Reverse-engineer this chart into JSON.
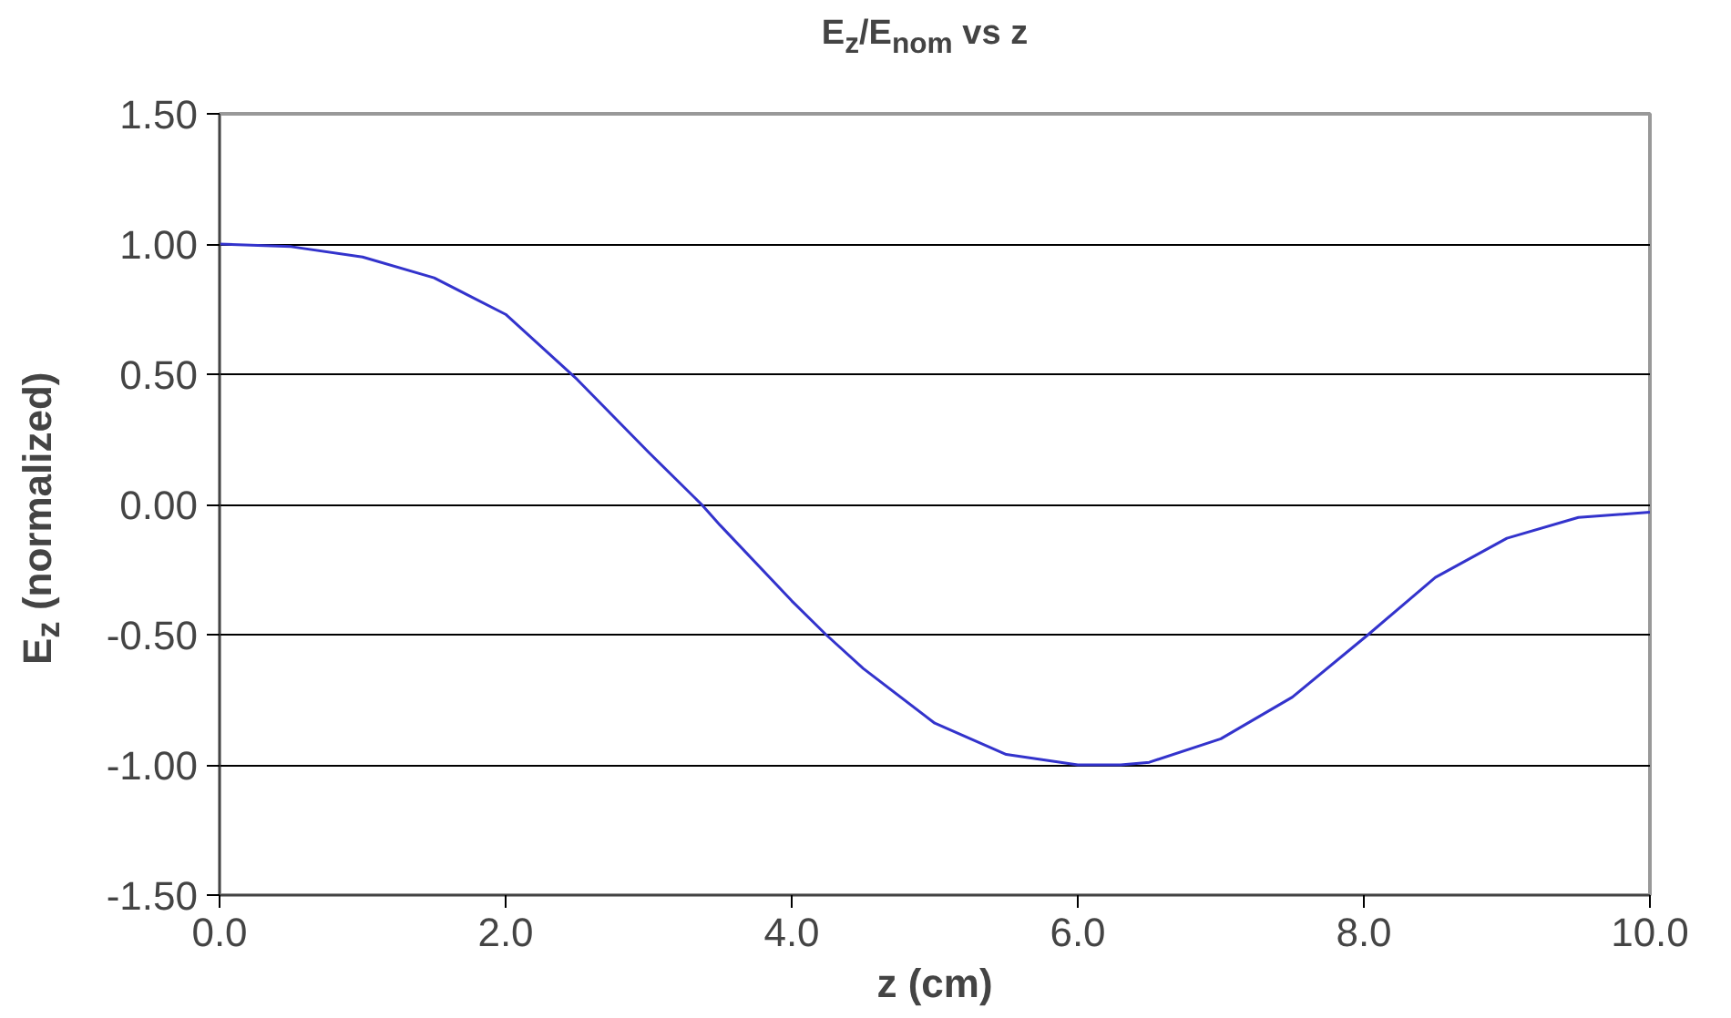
{
  "chart_data": {
    "type": "line",
    "title": "E$_{z}$/E$_{nom}$ vs z",
    "xlabel": "z (cm)",
    "ylabel": "E$_{z}$ (normalized)",
    "x": [
      0,
      0.5,
      1.0,
      1.5,
      2.0,
      2.5,
      3.0,
      3.37,
      3.5,
      4.0,
      4.24,
      4.5,
      5.0,
      5.5,
      6.0,
      6.3,
      6.5,
      7.0,
      7.5,
      8.03,
      8.5,
      9.0,
      9.5,
      10.0
    ],
    "series": [
      {
        "color": "#3333cc",
        "values": [
          1.0,
          0.99,
          0.95,
          0.87,
          0.73,
          0.48,
          0.2,
          0.0,
          -0.08,
          -0.37,
          -0.5,
          -0.63,
          -0.84,
          -0.96,
          -1.0,
          -1.0,
          -0.99,
          -0.9,
          -0.74,
          -0.5,
          -0.28,
          -0.13,
          -0.05,
          -0.03
        ]
      }
    ],
    "xlim": [
      0,
      10
    ],
    "ylim": [
      -1.5,
      1.5
    ],
    "xticks": [
      {
        "value": 0,
        "label": "0.0"
      },
      {
        "value": 2,
        "label": "2.0"
      },
      {
        "value": 4,
        "label": "4.0"
      },
      {
        "value": 6,
        "label": "6.0"
      },
      {
        "value": 8,
        "label": "8.0"
      },
      {
        "value": 10,
        "label": "10.0"
      }
    ],
    "yticks": [
      {
        "value": -1.5,
        "label": "-1.50"
      },
      {
        "value": -1,
        "label": "-1.00"
      },
      {
        "value": -0.5,
        "label": "-0.50"
      },
      {
        "value": 0,
        "label": "0.00"
      },
      {
        "value": 0.5,
        "label": "0.50"
      },
      {
        "value": 1,
        "label": "1.00"
      },
      {
        "value": 1.5,
        "label": "1.50"
      }
    ],
    "grid": "y",
    "marker": "none",
    "line_style": "solid"
  }
}
